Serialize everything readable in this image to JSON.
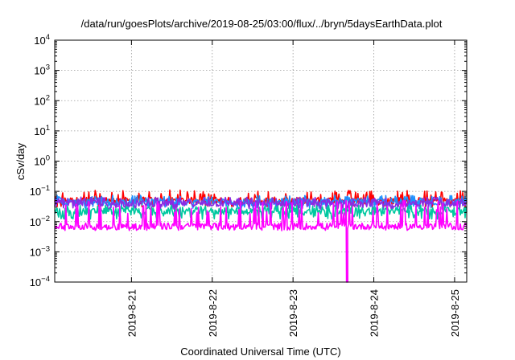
{
  "chart_data": {
    "type": "line",
    "title": "/data/run/goesPlots/archive/2019-08-25/03:00/flux/../bryn/5daysEarthData.plot",
    "xlabel": "Coordinated Universal Time (UTC)",
    "ylabel": "cSv/day",
    "y_scale": "log",
    "ylim_exponents": [
      -4,
      4
    ],
    "y_tick_exponents": [
      -4,
      -3,
      -2,
      -1,
      0,
      1,
      2,
      3,
      4
    ],
    "y_tick_base": "10",
    "x_unit": "days",
    "xlim_days": [
      20.05,
      25.15
    ],
    "x_ticks": [
      {
        "day": 21,
        "label": "2019-8-21"
      },
      {
        "day": 22,
        "label": "2019-8-22"
      },
      {
        "day": 23,
        "label": "2019-8-23"
      },
      {
        "day": 24,
        "label": "2019-8-24"
      },
      {
        "day": 25,
        "label": "2019-8-25"
      }
    ],
    "grid": true,
    "series": [
      {
        "color": "#ff0000",
        "typical_value": 0.05,
        "spike_high": 0.11,
        "spike_low": 0.03,
        "points": 520
      },
      {
        "color": "#1e90ff",
        "typical_value": 0.045,
        "spike_high": 0.075,
        "spike_low": 0.025,
        "points": 520
      },
      {
        "color": "#8a2be2",
        "typical_value": 0.04,
        "spike_high": 0.065,
        "spike_low": 0.025,
        "points": 520
      },
      {
        "color": "#00c8a0",
        "typical_value": 0.022,
        "spike_high": 0.035,
        "spike_low": 0.012,
        "points": 520
      },
      {
        "color": "#ff00ff",
        "typical_value": 0.007,
        "spike_high": 0.05,
        "spike_low": 0.005,
        "points": 520,
        "dropout": {
          "day": 23.67,
          "value": 0.0001
        }
      }
    ]
  }
}
